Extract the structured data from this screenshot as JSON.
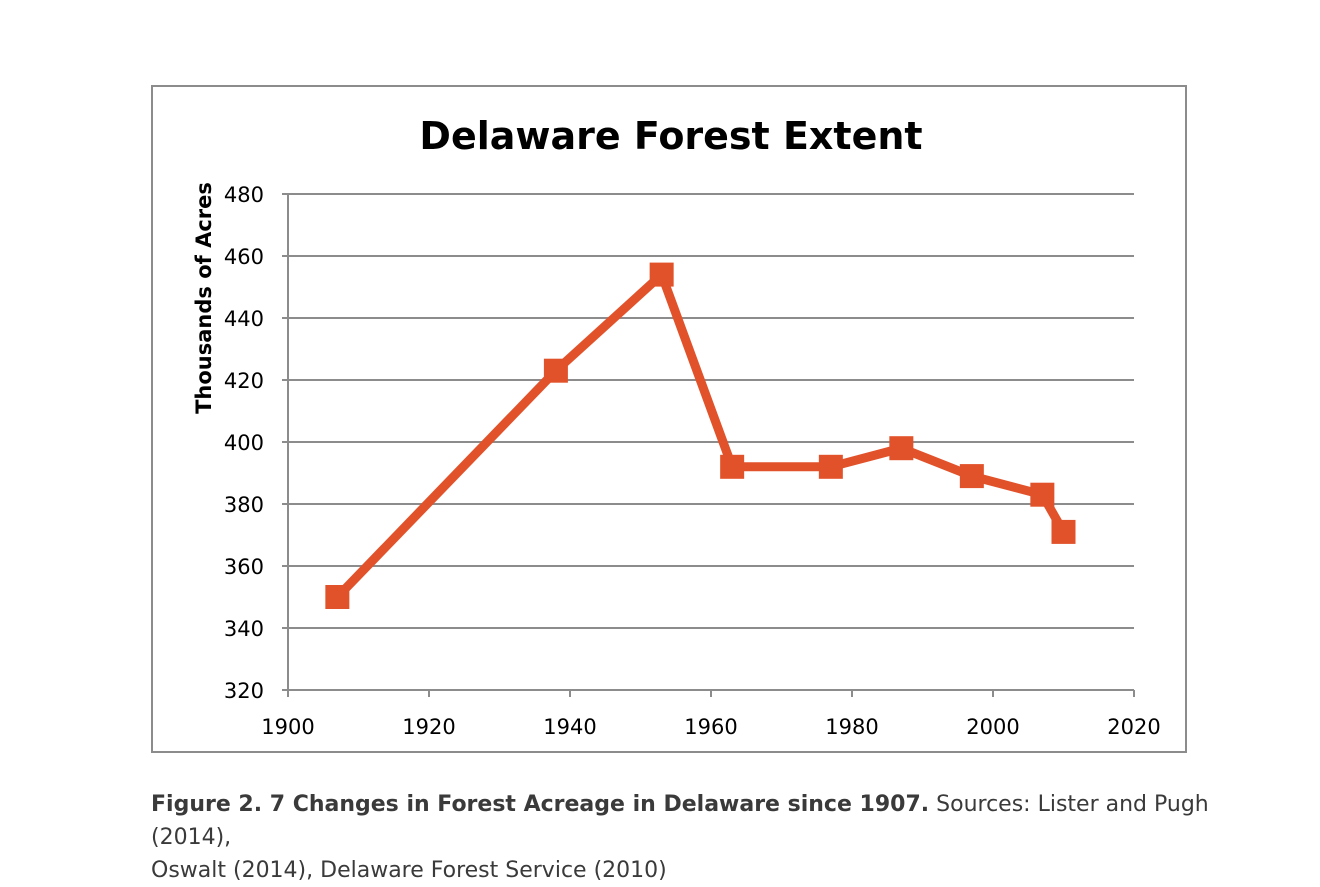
{
  "chart_data": {
    "type": "line",
    "title": "Delaware Forest Extent",
    "xlabel": "",
    "ylabel": "Thousands of Acres",
    "xlim": [
      1900,
      2020
    ],
    "ylim": [
      320,
      480
    ],
    "x_ticks": [
      "1900",
      "1920",
      "1940",
      "1960",
      "1980",
      "2000",
      "2020"
    ],
    "y_ticks": [
      "320",
      "340",
      "360",
      "380",
      "400",
      "420",
      "440",
      "460",
      "480"
    ],
    "grid": true,
    "legend": "none",
    "series": [
      {
        "color": "#e2522a",
        "marker": "square",
        "x": [
          1907,
          1938,
          1953,
          1963,
          1977,
          1987,
          1997,
          2007,
          2010
        ],
        "y": [
          350,
          423,
          454,
          392,
          392,
          398,
          389,
          383,
          371
        ]
      }
    ]
  },
  "caption": {
    "bold": "Figure 2. 7 Changes in Forest Acreage in Delaware since 1907.",
    "line1_rest": " Sources: Lister and Pugh (2014),",
    "line2": "Oswalt (2014), Delaware Forest Service (2010)"
  }
}
